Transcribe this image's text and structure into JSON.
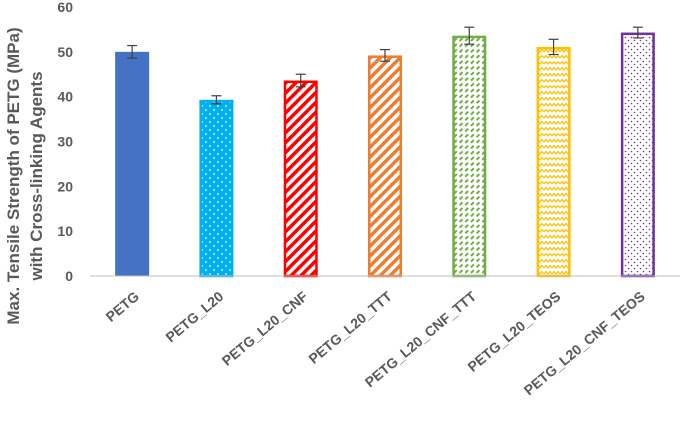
{
  "chart_data": {
    "type": "bar",
    "ylabel_lines": [
      "Max. Tensile Strength of PETG (MPa)",
      "with Cross-linking Agents"
    ],
    "ylim": [
      0,
      60
    ],
    "yticks": [
      0,
      10,
      20,
      30,
      40,
      50,
      60
    ],
    "grid": false,
    "categories": [
      "PETG",
      "PETG_L20",
      "PETG_L20_CNF",
      "PETG_L20_TTT",
      "PETG_L20_CNF_TTT",
      "PETG_L20_TEOS",
      "PETG_L20_CNF_TEOS"
    ],
    "values": [
      50.0,
      39.3,
      43.6,
      49.2,
      53.6,
      51.1,
      54.3
    ],
    "errors": [
      1.4,
      0.9,
      1.4,
      1.3,
      1.9,
      1.7,
      1.2
    ],
    "colors": [
      "#4472C4",
      "#00B0F0",
      "#FF0000",
      "#ED7D31",
      "#70AD47",
      "#FFC000",
      "#7030A0"
    ],
    "patterns": [
      "solid",
      "dots",
      "diagonal-stripes",
      "diagonal-stripes",
      "dashes",
      "zigzag",
      "small-dots"
    ]
  }
}
